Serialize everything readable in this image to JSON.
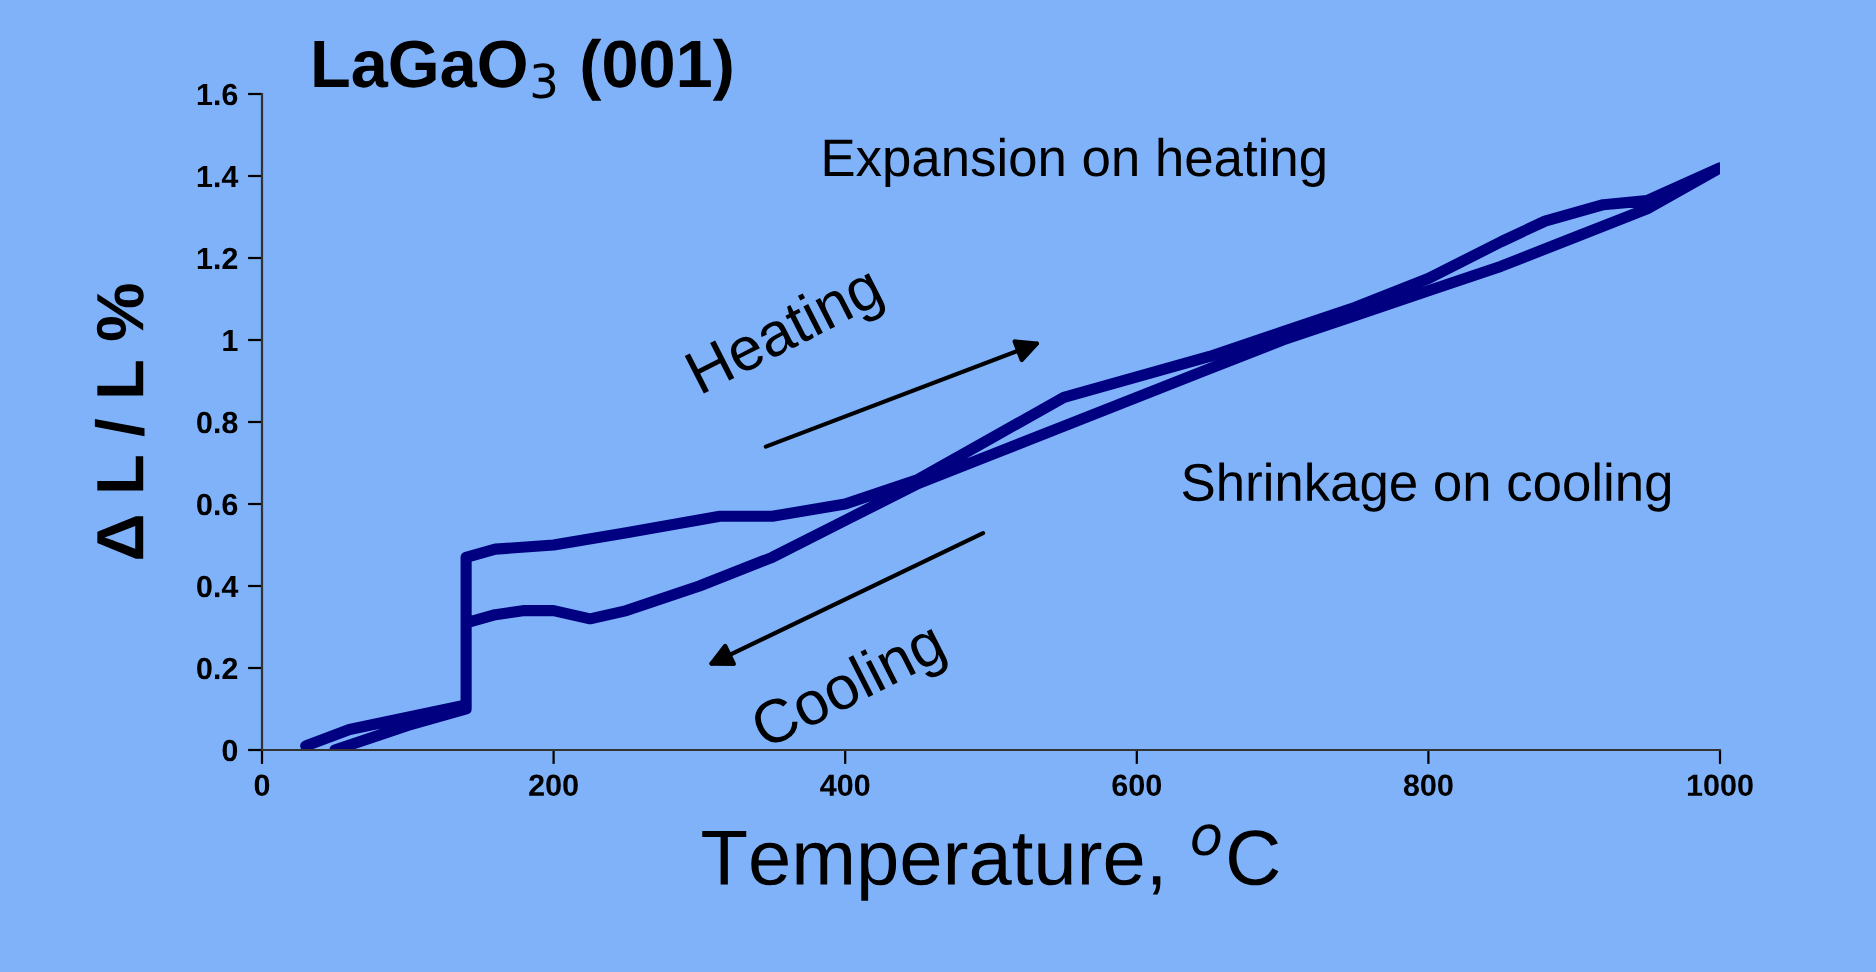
{
  "chart_data": {
    "type": "line",
    "title": "LaGaO$_{3}$ (001)",
    "xlabel": "Temperature, $^{o}$C",
    "ylabel": "Δ L / L %",
    "xlim": [
      0,
      1000
    ],
    "ylim": [
      0,
      1.6
    ],
    "xticks": [
      0,
      200,
      400,
      600,
      800,
      1000
    ],
    "yticks": [
      0,
      0.2,
      0.4,
      0.6,
      0.8,
      1,
      1.2,
      1.4,
      1.6
    ],
    "grid": false,
    "legend": false,
    "marker": "none",
    "line_style": "solid",
    "annotations": [
      "Expansion on heating",
      "Heating",
      "Cooling",
      "Shrinkage on cooling"
    ],
    "series": [
      {
        "color": "#000080",
        "x": [
          30,
          60,
          100,
          140,
          140,
          160,
          180,
          200,
          225,
          250,
          300,
          350,
          400,
          450,
          500,
          550,
          600,
          650,
          700,
          750,
          800,
          850,
          900,
          950,
          1000,
          950,
          920,
          880,
          850,
          800,
          750,
          700,
          650,
          600,
          550,
          500,
          450,
          400,
          350,
          314,
          250,
          200,
          160,
          140,
          140,
          100,
          50
        ],
        "values": [
          0.01,
          0.05,
          0.08,
          0.11,
          0.31,
          0.33,
          0.34,
          0.34,
          0.32,
          0.34,
          0.4,
          0.47,
          0.56,
          0.65,
          0.72,
          0.79,
          0.86,
          0.93,
          1.0,
          1.06,
          1.12,
          1.18,
          1.25,
          1.32,
          1.42,
          1.34,
          1.33,
          1.29,
          1.24,
          1.15,
          1.08,
          1.02,
          0.96,
          0.91,
          0.86,
          0.76,
          0.66,
          0.6,
          0.57,
          0.57,
          0.53,
          0.5,
          0.49,
          0.47,
          0.1,
          0.06,
          0.0
        ]
      }
    ]
  }
}
